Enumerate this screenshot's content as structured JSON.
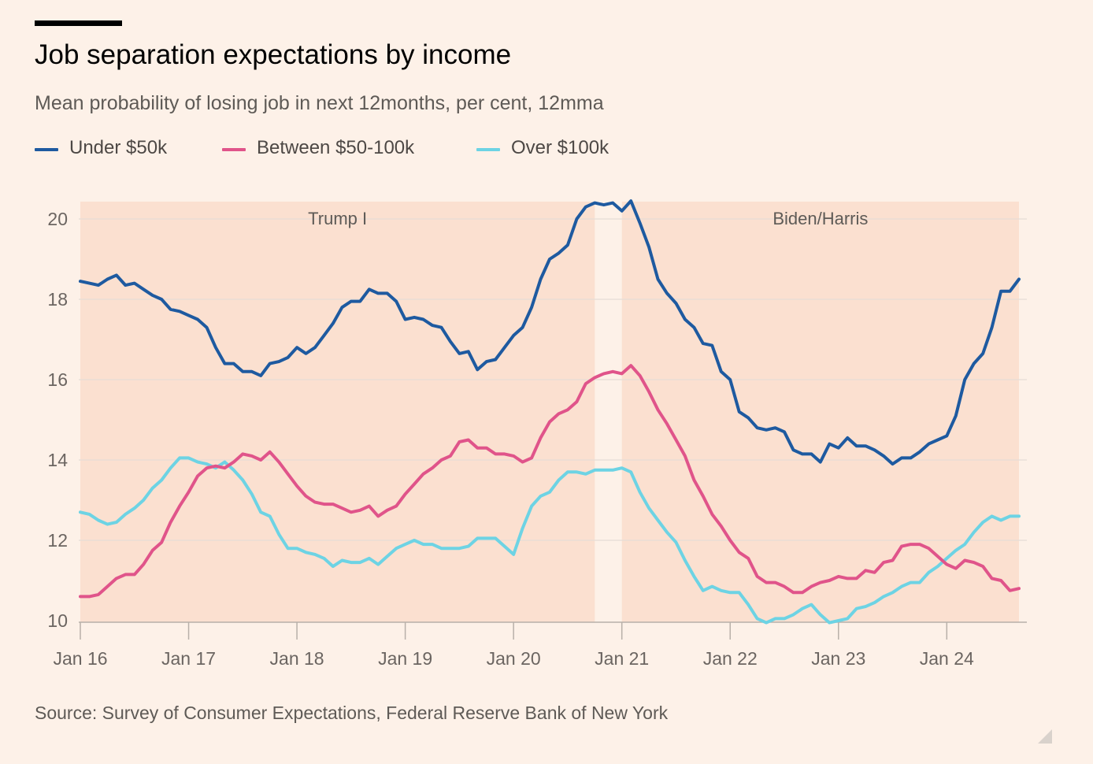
{
  "header": {
    "title": "Job separation expectations by income",
    "subtitle": "Mean probability of losing job in next 12months, per cent, 12mma"
  },
  "footer": {
    "source": "Source: Survey of Consumer Expectations, Federal Reserve Bank of New York"
  },
  "colors": {
    "background": "#fdf1e8",
    "shade": "#fbe0d0",
    "under_50k": "#1e5aa0",
    "between_50_100k": "#e0548a",
    "over_100k": "#6dd3e4",
    "grid": "#e6ddd6",
    "axis": "#b8b0a9"
  },
  "chart_data": {
    "type": "line",
    "title": "Job separation expectations by income",
    "subtitle": "Mean probability of losing job in next 12months, per cent, 12mma",
    "xlabel": "",
    "ylabel": "",
    "ylim": [
      10,
      20
    ],
    "yticks": [
      10,
      12,
      14,
      16,
      18,
      20
    ],
    "xticks": [
      "Jan 16",
      "Jan 17",
      "Jan 18",
      "Jan 19",
      "Jan 20",
      "Jan 21",
      "Jan 22",
      "Jan 23",
      "Jan 24"
    ],
    "grid": true,
    "legend_position": "top-left",
    "shaded_periods": [
      {
        "label": "Trump I",
        "start": "2016-01",
        "end": "2020-10"
      },
      {
        "label": "Biden/Harris",
        "start": "2021-01",
        "end": "2024-09"
      }
    ],
    "x": [
      "2016-01",
      "2016-02",
      "2016-03",
      "2016-04",
      "2016-05",
      "2016-06",
      "2016-07",
      "2016-08",
      "2016-09",
      "2016-10",
      "2016-11",
      "2016-12",
      "2017-01",
      "2017-02",
      "2017-03",
      "2017-04",
      "2017-05",
      "2017-06",
      "2017-07",
      "2017-08",
      "2017-09",
      "2017-10",
      "2017-11",
      "2017-12",
      "2018-01",
      "2018-02",
      "2018-03",
      "2018-04",
      "2018-05",
      "2018-06",
      "2018-07",
      "2018-08",
      "2018-09",
      "2018-10",
      "2018-11",
      "2018-12",
      "2019-01",
      "2019-02",
      "2019-03",
      "2019-04",
      "2019-05",
      "2019-06",
      "2019-07",
      "2019-08",
      "2019-09",
      "2019-10",
      "2019-11",
      "2019-12",
      "2020-01",
      "2020-02",
      "2020-03",
      "2020-04",
      "2020-05",
      "2020-06",
      "2020-07",
      "2020-08",
      "2020-09",
      "2020-10",
      "2020-11",
      "2020-12",
      "2021-01",
      "2021-02",
      "2021-03",
      "2021-04",
      "2021-05",
      "2021-06",
      "2021-07",
      "2021-08",
      "2021-09",
      "2021-10",
      "2021-11",
      "2021-12",
      "2022-01",
      "2022-02",
      "2022-03",
      "2022-04",
      "2022-05",
      "2022-06",
      "2022-07",
      "2022-08",
      "2022-09",
      "2022-10",
      "2022-11",
      "2022-12",
      "2023-01",
      "2023-02",
      "2023-03",
      "2023-04",
      "2023-05",
      "2023-06",
      "2023-07",
      "2023-08",
      "2023-09",
      "2023-10",
      "2023-11",
      "2023-12",
      "2024-01",
      "2024-02",
      "2024-03",
      "2024-04",
      "2024-05",
      "2024-06",
      "2024-07",
      "2024-08",
      "2024-09"
    ],
    "series": [
      {
        "name": "Under $50k",
        "color_key": "under_50k",
        "values": [
          18.45,
          18.4,
          18.35,
          18.5,
          18.6,
          18.35,
          18.4,
          18.25,
          18.1,
          18.0,
          17.75,
          17.7,
          17.6,
          17.5,
          17.3,
          16.8,
          16.4,
          16.4,
          16.2,
          16.2,
          16.1,
          16.4,
          16.45,
          16.55,
          16.8,
          16.65,
          16.8,
          17.1,
          17.4,
          17.8,
          17.95,
          17.95,
          18.25,
          18.15,
          18.15,
          17.95,
          17.5,
          17.55,
          17.5,
          17.35,
          17.3,
          16.95,
          16.65,
          16.7,
          16.25,
          16.45,
          16.5,
          16.8,
          17.1,
          17.3,
          17.8,
          18.5,
          19.0,
          19.15,
          19.35,
          20.0,
          20.3,
          20.4,
          20.35,
          20.4,
          20.2,
          20.45,
          19.9,
          19.3,
          18.5,
          18.15,
          17.9,
          17.5,
          17.3,
          16.9,
          16.85,
          16.2,
          16.0,
          15.2,
          15.05,
          14.8,
          14.75,
          14.8,
          14.7,
          14.25,
          14.15,
          14.15,
          13.95,
          14.4,
          14.3,
          14.55,
          14.35,
          14.35,
          14.25,
          14.1,
          13.9,
          14.05,
          14.05,
          14.2,
          14.4,
          14.5,
          14.6,
          15.1,
          16.0,
          16.4,
          16.65,
          17.3,
          18.2,
          18.2,
          18.5
        ]
      },
      {
        "name": "Between $50-100k",
        "color_key": "between_50_100k",
        "values": [
          10.6,
          10.6,
          10.65,
          10.85,
          11.05,
          11.15,
          11.15,
          11.4,
          11.75,
          11.95,
          12.45,
          12.85,
          13.2,
          13.6,
          13.8,
          13.85,
          13.8,
          13.95,
          14.15,
          14.1,
          14.0,
          14.2,
          13.95,
          13.65,
          13.35,
          13.1,
          12.95,
          12.9,
          12.9,
          12.8,
          12.7,
          12.75,
          12.85,
          12.6,
          12.75,
          12.85,
          13.15,
          13.4,
          13.65,
          13.8,
          14.0,
          14.1,
          14.45,
          14.5,
          14.3,
          14.3,
          14.15,
          14.15,
          14.1,
          13.95,
          14.05,
          14.55,
          14.95,
          15.15,
          15.25,
          15.45,
          15.9,
          16.05,
          16.15,
          16.2,
          16.15,
          16.35,
          16.1,
          15.7,
          15.25,
          14.9,
          14.5,
          14.1,
          13.5,
          13.1,
          12.65,
          12.35,
          12.0,
          11.7,
          11.55,
          11.1,
          10.95,
          10.95,
          10.85,
          10.7,
          10.7,
          10.85,
          10.95,
          11.0,
          11.1,
          11.05,
          11.05,
          11.25,
          11.2,
          11.45,
          11.5,
          11.85,
          11.9,
          11.9,
          11.8,
          11.6,
          11.4,
          11.3,
          11.5,
          11.45,
          11.35,
          11.05,
          11.0,
          10.75,
          10.8
        ]
      },
      {
        "name": "Over $100k",
        "color_key": "over_100k",
        "values": [
          12.7,
          12.65,
          12.5,
          12.4,
          12.45,
          12.65,
          12.8,
          13.0,
          13.3,
          13.5,
          13.8,
          14.05,
          14.05,
          13.95,
          13.9,
          13.8,
          13.95,
          13.75,
          13.5,
          13.15,
          12.7,
          12.6,
          12.15,
          11.8,
          11.8,
          11.7,
          11.65,
          11.55,
          11.35,
          11.5,
          11.45,
          11.45,
          11.55,
          11.4,
          11.6,
          11.8,
          11.9,
          12.0,
          11.9,
          11.9,
          11.8,
          11.8,
          11.8,
          11.85,
          12.05,
          12.05,
          12.05,
          11.85,
          11.65,
          12.3,
          12.85,
          13.1,
          13.2,
          13.5,
          13.7,
          13.7,
          13.65,
          13.75,
          13.75,
          13.75,
          13.8,
          13.7,
          13.2,
          12.8,
          12.5,
          12.2,
          11.95,
          11.5,
          11.1,
          10.75,
          10.85,
          10.75,
          10.7,
          10.7,
          10.4,
          10.05,
          9.95,
          10.05,
          10.05,
          10.15,
          10.3,
          10.4,
          10.15,
          9.95,
          10.0,
          10.05,
          10.3,
          10.35,
          10.45,
          10.6,
          10.7,
          10.85,
          10.95,
          10.95,
          11.2,
          11.35,
          11.55,
          11.75,
          11.9,
          12.2,
          12.45,
          12.6,
          12.5,
          12.6,
          12.6
        ]
      }
    ]
  }
}
